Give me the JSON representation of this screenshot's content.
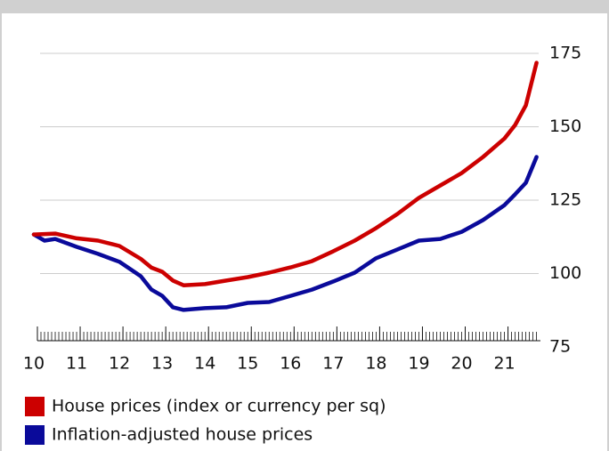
{
  "chart_data": {
    "type": "line",
    "legend": "bottom",
    "xlim": [
      10,
      21.8
    ],
    "xticks": [
      10,
      11,
      12,
      13,
      14,
      15,
      16,
      17,
      18,
      19,
      20,
      21
    ],
    "ylim": [
      75,
      175
    ],
    "yticks": [
      75,
      100,
      125,
      150,
      175
    ],
    "grid": true,
    "series": [
      {
        "name": "House prices (index or currency per sq)",
        "color": "#cc0000",
        "x": [
          10,
          10.5,
          11,
          11.5,
          12,
          12.5,
          12.75,
          13,
          13.25,
          13.5,
          14,
          14.5,
          15,
          15.5,
          16,
          16.5,
          17,
          17.5,
          18,
          18.5,
          19,
          19.5,
          20,
          20.5,
          21,
          21.25,
          21.5,
          21.75
        ],
        "values": [
          113.3,
          113.6,
          112,
          111.2,
          109.4,
          105,
          102,
          100.6,
          97.6,
          96,
          96.4,
          97.6,
          98.8,
          100.3,
          102.1,
          104.2,
          107.6,
          111.2,
          115.5,
          120.3,
          125.8,
          130,
          134.2,
          139.7,
          146,
          150.6,
          157.3,
          171.8
        ]
      },
      {
        "name": "Inflation-adjusted house prices",
        "color": "#0a0a9a",
        "x": [
          10,
          10.25,
          10.5,
          11,
          11.5,
          12,
          12.5,
          12.75,
          13,
          13.25,
          13.5,
          14,
          14.5,
          15,
          15.5,
          16,
          16.5,
          17,
          17.5,
          18,
          18.5,
          19,
          19.5,
          20,
          20.5,
          21,
          21.25,
          21.5,
          21.75
        ],
        "values": [
          113.3,
          111.2,
          111.8,
          109.1,
          106.7,
          104,
          99.1,
          94.5,
          92.4,
          88.5,
          87.6,
          88.2,
          88.5,
          90,
          90.3,
          92.4,
          94.5,
          97.3,
          100.3,
          105.2,
          108.2,
          111.2,
          111.8,
          114.2,
          118.2,
          123.3,
          127,
          130.9,
          139.7
        ]
      }
    ]
  }
}
